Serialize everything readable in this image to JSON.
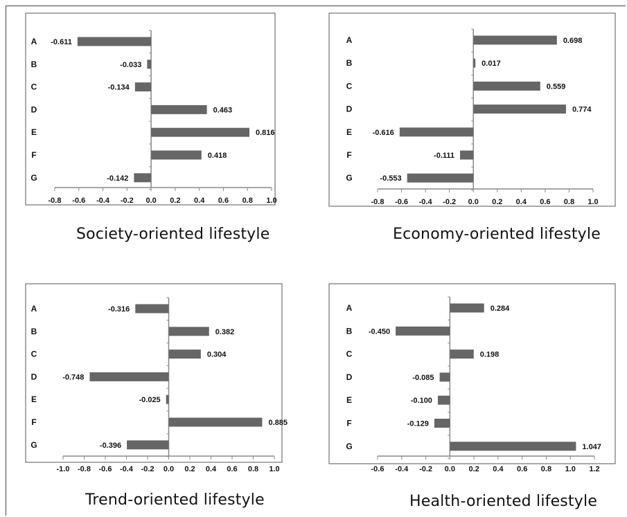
{
  "chart_data": [
    {
      "type": "bar",
      "orientation": "horizontal",
      "title": "Society-oriented lifestyle",
      "categories": [
        "A",
        "B",
        "C",
        "D",
        "E",
        "F",
        "G"
      ],
      "values": [
        -0.611,
        -0.033,
        -0.134,
        0.463,
        0.816,
        0.418,
        -0.142
      ],
      "value_labels": [
        "-0.611",
        "-0.033",
        "-0.134",
        "0.463",
        "0.816",
        "0.418",
        "-0.142"
      ],
      "xlim": [
        -0.8,
        1.0
      ],
      "xticks": [
        "-0.8",
        "-0.6",
        "-0.4",
        "-0.2",
        "0.0",
        "0.2",
        "0.4",
        "0.6",
        "0.8",
        "1.0"
      ],
      "grid": false,
      "bar_color": "#666666"
    },
    {
      "type": "bar",
      "orientation": "horizontal",
      "title": "Economy-oriented lifestyle",
      "categories": [
        "A",
        "B",
        "C",
        "D",
        "E",
        "F",
        "G"
      ],
      "values": [
        0.698,
        0.017,
        0.559,
        0.774,
        -0.616,
        -0.111,
        -0.553
      ],
      "value_labels": [
        "0.698",
        "0.017",
        "0.559",
        "0.774",
        "-0.616",
        "-0.111",
        "-0.553"
      ],
      "xlim": [
        -0.8,
        1.0
      ],
      "xticks": [
        "-0.8",
        "-0.6",
        "-0.4",
        "-0.2",
        "0.0",
        "0.2",
        "0.4",
        "0.6",
        "0.8",
        "1.0"
      ],
      "grid": false,
      "bar_color": "#666666"
    },
    {
      "type": "bar",
      "orientation": "horizontal",
      "title": "Trend-oriented lifestyle",
      "categories": [
        "A",
        "B",
        "C",
        "D",
        "E",
        "F",
        "G"
      ],
      "values": [
        -0.316,
        0.382,
        0.304,
        -0.748,
        -0.025,
        0.885,
        -0.396
      ],
      "value_labels": [
        "-0.316",
        "0.382",
        "0.304",
        "-0.748",
        "-0.025",
        "0.885",
        "-0.396"
      ],
      "xlim": [
        -1.0,
        1.0
      ],
      "xticks": [
        "-1.0",
        "-0.8",
        "-0.6",
        "-0.4",
        "-0.2",
        "0.0",
        "0.2",
        "0.4",
        "0.6",
        "0.8",
        "1.0"
      ],
      "grid": false,
      "bar_color": "#666666"
    },
    {
      "type": "bar",
      "orientation": "horizontal",
      "title": "Health-oriented lifestyle",
      "categories": [
        "A",
        "B",
        "C",
        "D",
        "E",
        "F",
        "G"
      ],
      "values": [
        0.284,
        -0.45,
        0.198,
        -0.085,
        -0.1,
        -0.129,
        1.047
      ],
      "value_labels": [
        "0.284",
        "-0.450",
        "0.198",
        "-0.085",
        "-0.100",
        "-0.129",
        "1.047"
      ],
      "xlim": [
        -0.6,
        1.2
      ],
      "xticks": [
        "-0.6",
        "-0.4",
        "-0.2",
        "0.0",
        "0.2",
        "0.4",
        "0.6",
        "0.8",
        "1.0",
        "1.2"
      ],
      "grid": false,
      "bar_color": "#666666"
    }
  ]
}
